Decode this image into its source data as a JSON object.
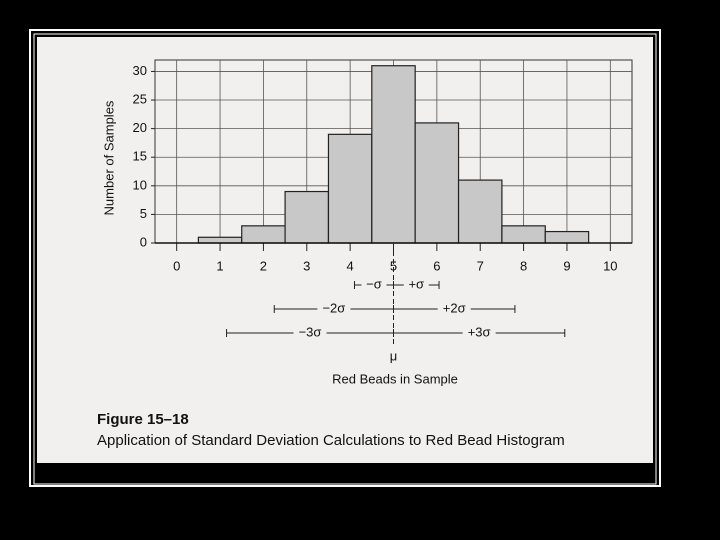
{
  "chart_data": {
    "type": "histogram",
    "bins": [
      0.5,
      1.5,
      2.5,
      3.5,
      4.5,
      5.5,
      6.5,
      7.5,
      8.5,
      9.5
    ],
    "counts": [
      1,
      3,
      9,
      19,
      31,
      21,
      11,
      3,
      2
    ],
    "color": "#c8c8c8",
    "xlabel": "Red Beads in Sample",
    "ylabel": "Number of Samples",
    "xlim": [
      -0.5,
      10.5
    ],
    "xticks": [
      0,
      1,
      2,
      3,
      4,
      5,
      6,
      7,
      8,
      9,
      10
    ],
    "ylim": [
      0,
      32
    ],
    "yticks": [
      0,
      5,
      10,
      15,
      20,
      25,
      30
    ],
    "grid": true,
    "mu": {
      "label": "μ",
      "value": 5
    },
    "sigma_ranges": [
      {
        "label": "−σ",
        "from": 4.1,
        "to": 5
      },
      {
        "label": "+σ",
        "from": 5,
        "to": 6.05
      },
      {
        "label": "−2σ",
        "from": 2.25,
        "to": 5
      },
      {
        "label": "+2σ",
        "from": 5,
        "to": 7.8
      },
      {
        "label": "−3σ",
        "from": 1.15,
        "to": 5
      },
      {
        "label": "+3σ",
        "from": 5,
        "to": 8.95
      }
    ],
    "figure_number": "Figure 15–18",
    "caption": "Application of Standard Deviation Calculations to Red Bead Histogram"
  }
}
